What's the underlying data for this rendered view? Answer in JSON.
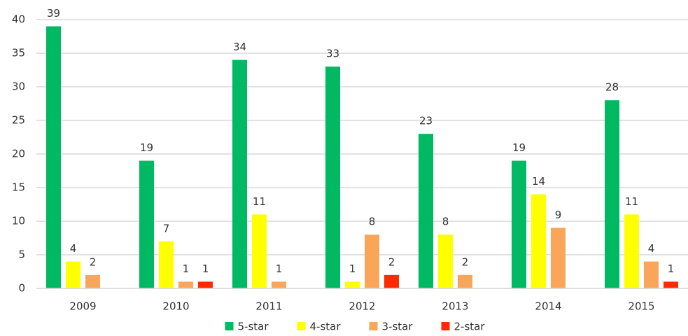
{
  "chart_data": {
    "type": "bar",
    "categories": [
      "2009",
      "2010",
      "2011",
      "2012",
      "2013",
      "2014",
      "2015"
    ],
    "series": [
      {
        "name": "5-star",
        "color": "#00b962",
        "values": [
          39,
          19,
          34,
          33,
          23,
          19,
          28
        ]
      },
      {
        "name": "4-star",
        "color": "#ffff00",
        "values": [
          4,
          7,
          11,
          1,
          8,
          14,
          11
        ]
      },
      {
        "name": "3-star",
        "color": "#f9a65a",
        "values": [
          2,
          1,
          1,
          8,
          2,
          9,
          4
        ]
      },
      {
        "name": "2-star",
        "color": "#ff2a00",
        "values": [
          null,
          1,
          null,
          2,
          null,
          null,
          1
        ]
      }
    ],
    "ylim": [
      0,
      40
    ],
    "yticks": [
      0,
      5,
      10,
      15,
      20,
      25,
      30,
      35,
      40
    ],
    "grid": true,
    "legend": "bottom"
  }
}
